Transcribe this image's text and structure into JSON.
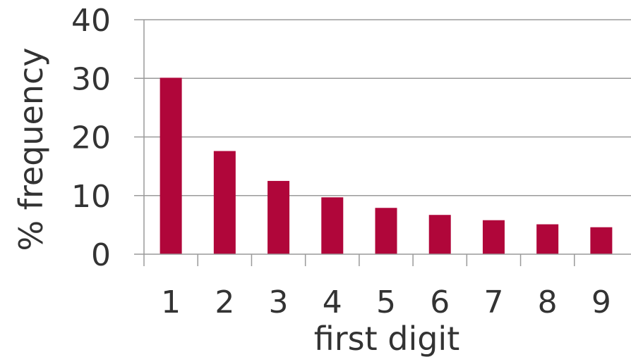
{
  "chart_data": {
    "type": "bar",
    "categories": [
      "1",
      "2",
      "3",
      "4",
      "5",
      "6",
      "7",
      "8",
      "9"
    ],
    "series": [
      {
        "values": [
          30.1,
          17.6,
          12.5,
          9.7,
          7.9,
          6.7,
          5.8,
          5.1,
          4.6
        ]
      }
    ],
    "xlabel": "first digit",
    "ylabel": "% frequency",
    "ylim": [
      0,
      40
    ],
    "yticks": [
      0,
      10,
      20,
      30,
      40
    ],
    "grid": true,
    "bar_color": "#b0063a",
    "grid_color": "#9a9a9a"
  }
}
